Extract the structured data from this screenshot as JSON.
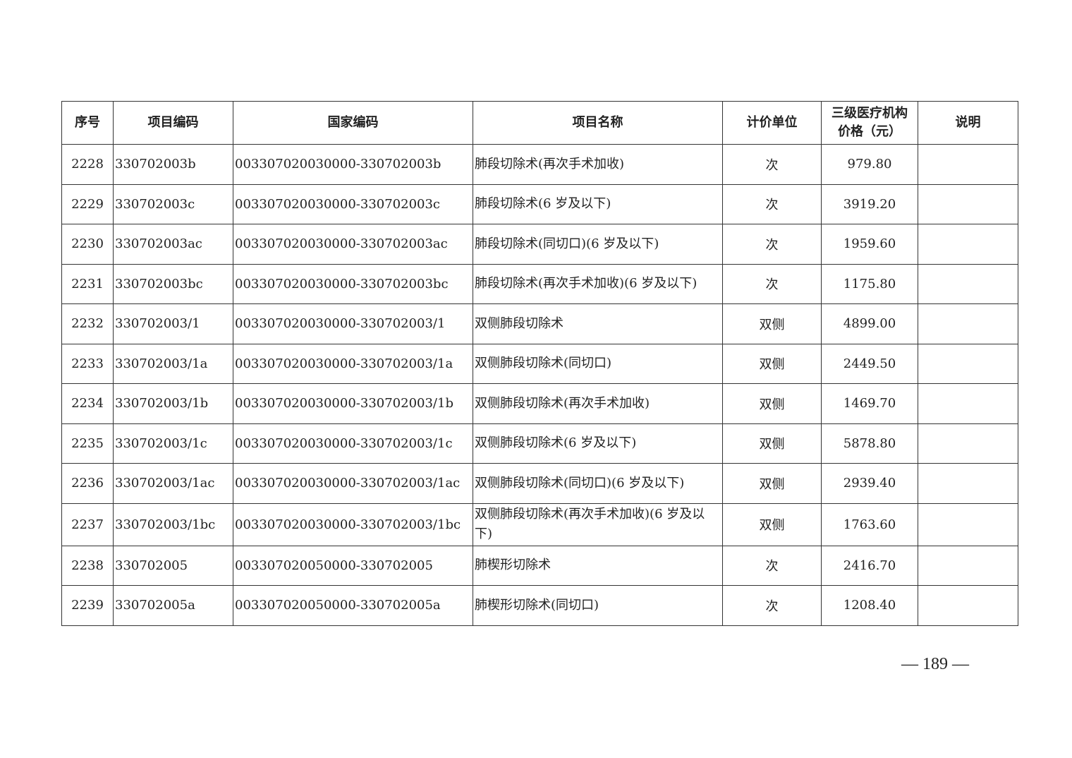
{
  "table": {
    "headers": [
      "序号",
      "项目编码",
      "国家编码",
      "项目名称",
      "计价单位",
      "三级医疗机构价格（元）",
      "说明"
    ],
    "header_price_line1": "三级医疗机构",
    "header_price_line2": "价格（元）",
    "rows": [
      [
        "2228",
        "330702003b",
        "003307020030000-330702003b",
        "肺段切除术(再次手术加收)",
        "次",
        "979.80",
        ""
      ],
      [
        "2229",
        "330702003c",
        "003307020030000-330702003c",
        "肺段切除术(6 岁及以下)",
        "次",
        "3919.20",
        ""
      ],
      [
        "2230",
        "330702003ac",
        "003307020030000-330702003ac",
        "肺段切除术(同切口)(6 岁及以下)",
        "次",
        "1959.60",
        ""
      ],
      [
        "2231",
        "330702003bc",
        "003307020030000-330702003bc",
        "肺段切除术(再次手术加收)(6 岁及以下)",
        "次",
        "1175.80",
        ""
      ],
      [
        "2232",
        "330702003/1",
        "003307020030000-330702003/1",
        "双侧肺段切除术",
        "双侧",
        "4899.00",
        ""
      ],
      [
        "2233",
        "330702003/1a",
        "003307020030000-330702003/1a",
        "双侧肺段切除术(同切口)",
        "双侧",
        "2449.50",
        ""
      ],
      [
        "2234",
        "330702003/1b",
        "003307020030000-330702003/1b",
        "双侧肺段切除术(再次手术加收)",
        "双侧",
        "1469.70",
        ""
      ],
      [
        "2235",
        "330702003/1c",
        "003307020030000-330702003/1c",
        "双侧肺段切除术(6 岁及以下)",
        "双侧",
        "5878.80",
        ""
      ],
      [
        "2236",
        "330702003/1ac",
        "003307020030000-330702003/1ac",
        "双侧肺段切除术(同切口)(6 岁及以下)",
        "双侧",
        "2939.40",
        ""
      ],
      [
        "2237",
        "330702003/1bc",
        "003307020030000-330702003/1bc",
        "双侧肺段切除术(再次手术加收)(6 岁及以下)",
        "双侧",
        "1763.60",
        ""
      ],
      [
        "2238",
        "330702005",
        "003307020050000-330702005",
        "肺楔形切除术",
        "次",
        "2416.70",
        ""
      ],
      [
        "2239",
        "330702005a",
        "003307020050000-330702005a",
        "肺楔形切除术(同切口)",
        "次",
        "1208.40",
        ""
      ]
    ]
  },
  "page_number": "— 189 —"
}
